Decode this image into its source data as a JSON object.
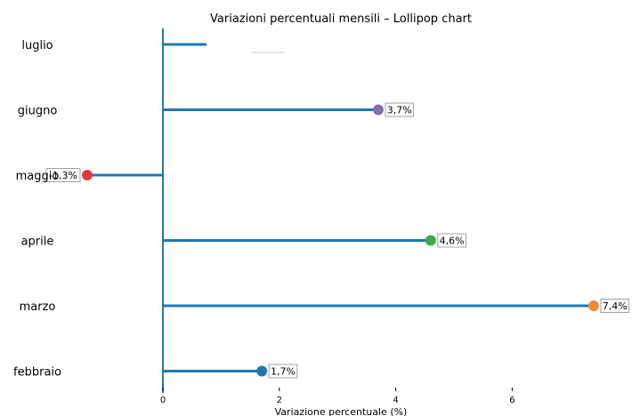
{
  "chart_data": {
    "type": "lollipop",
    "title": "Variazioni percentuali mensili – Lollipop chart",
    "xlabel": "Variazione percentuale (%)",
    "ylabel": "",
    "xlim": [
      0,
      8
    ],
    "xticks": [
      0,
      2,
      4,
      6
    ],
    "xtick_labels": [
      "0",
      "2",
      "4",
      "6"
    ],
    "grid": false,
    "legend": "none",
    "stem_color": "#1f77b4",
    "categories": [
      "febbraio",
      "marzo",
      "aprile",
      "maggio",
      "giugno",
      "luglio"
    ],
    "values": [
      1.7,
      7.4,
      4.6,
      -1.3,
      3.7,
      0.75
    ],
    "value_labels": [
      "1,7%",
      "7,4%",
      "4,6%",
      "-1,3%",
      "3,7%",
      null
    ],
    "dot_colors": [
      "#1f77b4",
      "#f0883a",
      "#3aaa4a",
      "#e03a3e",
      "#8c6bb1",
      null
    ]
  }
}
